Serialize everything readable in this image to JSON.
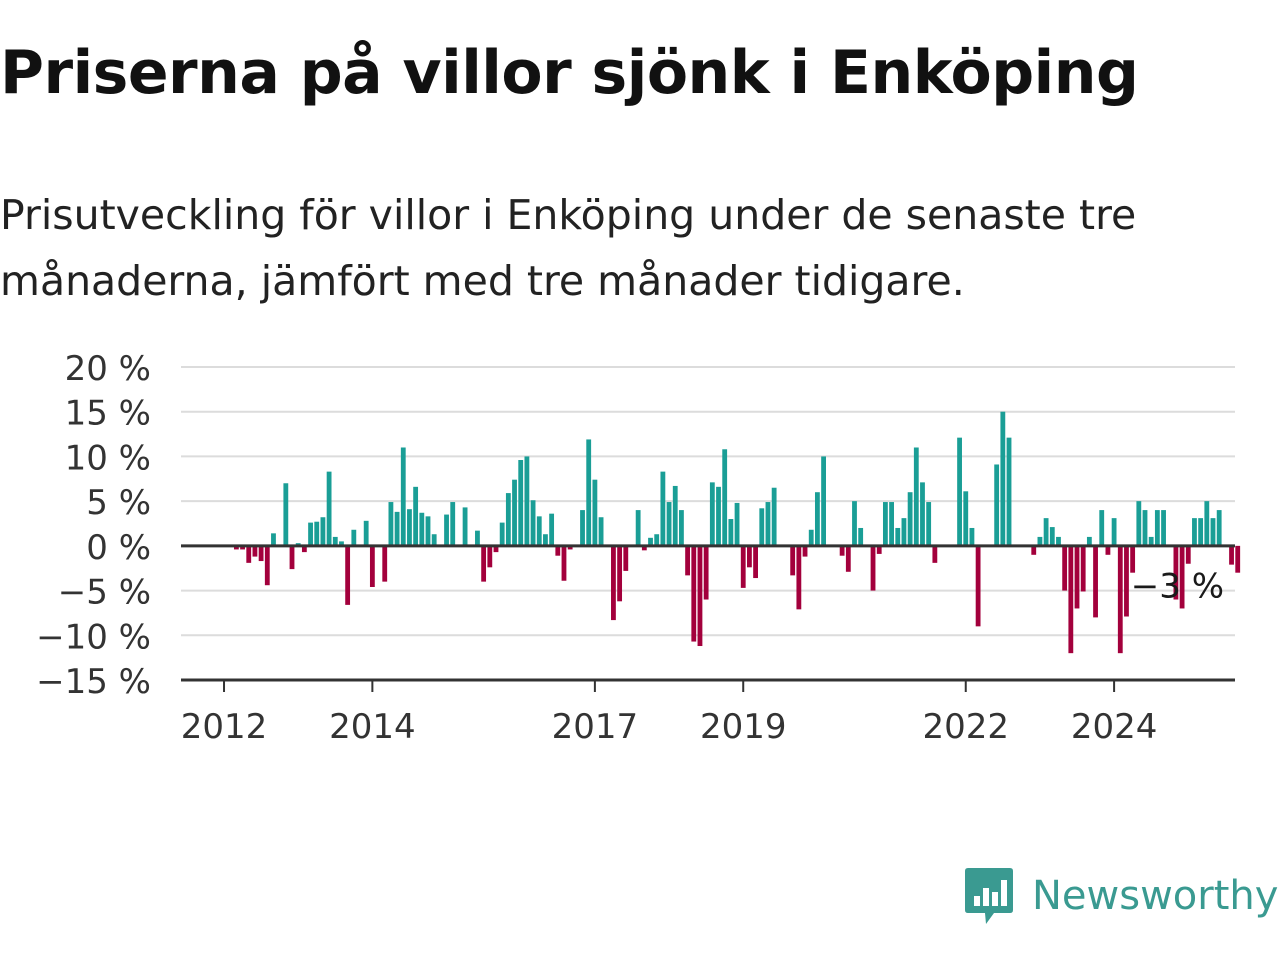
{
  "title": "Priserna på villor sjönk i Enköping",
  "subtitle": "Prisutveckling för villor i Enköping under de senaste tre månaderna, jämfört med tre månader tidigare.",
  "brand": {
    "name": "Newsworthy",
    "icon": "bar-chart-speech-bubble-icon",
    "color": "#3a9a91"
  },
  "chart_data": {
    "type": "bar",
    "title": "",
    "xlabel": "",
    "ylabel": "",
    "ylim": [
      -15,
      20
    ],
    "y_ticks": [
      20,
      15,
      10,
      5,
      0,
      -5,
      -10,
      -15
    ],
    "y_tick_labels": [
      "20 %",
      "15 %",
      "10 %",
      "5 %",
      "0 %",
      "−5 %",
      "−10 %",
      "−15 %"
    ],
    "x_tick_labels": [
      "2012",
      "2014",
      "2017",
      "2019",
      "2022",
      "2024"
    ],
    "x_tick_years": [
      2012,
      2014,
      2017,
      2019,
      2022,
      2024
    ],
    "x_range_years": [
      2011.42,
      2025.63
    ],
    "first_bar_year": 2012.0,
    "bar_step_years": 0.0833333,
    "grid": true,
    "colors": {
      "positive": "#1a9e96",
      "negative": "#a3003c",
      "grid": "#dcdcdc",
      "axis": "#333333"
    },
    "annotation": {
      "label": "−3 %",
      "value": -3
    },
    "values": [
      0,
      0,
      -0.4,
      -0.4,
      -1.9,
      -1.2,
      -1.7,
      -4.4,
      1.4,
      0,
      7.0,
      -2.6,
      0.3,
      -0.7,
      2.6,
      2.7,
      3.2,
      8.3,
      1.0,
      0.5,
      -6.6,
      1.8,
      0,
      2.8,
      -4.6,
      0,
      -4.0,
      4.9,
      3.8,
      11.0,
      4.1,
      6.6,
      3.7,
      3.3,
      1.3,
      0,
      3.5,
      4.9,
      0,
      4.3,
      0,
      1.7,
      -4.0,
      -2.4,
      -0.7,
      2.6,
      5.9,
      7.4,
      9.6,
      10.0,
      5.1,
      3.3,
      1.3,
      3.6,
      -1.1,
      -3.9,
      -0.4,
      0,
      4.0,
      11.9,
      7.4,
      3.2,
      0,
      -8.3,
      -6.2,
      -2.8,
      0,
      4.0,
      -0.5,
      0.9,
      1.3,
      8.3,
      4.9,
      6.7,
      4.0,
      -3.3,
      -10.7,
      -11.2,
      -6.0,
      7.1,
      6.6,
      10.8,
      3.0,
      4.8,
      -4.7,
      -2.4,
      -3.6,
      4.2,
      4.9,
      6.5,
      0,
      0,
      -3.3,
      -7.1,
      -1.2,
      1.8,
      6.0,
      10.0,
      0,
      0,
      -1.1,
      -2.9,
      5.0,
      2.0,
      0,
      -5.0,
      -0.9,
      4.9,
      4.9,
      2.0,
      3.1,
      6.0,
      11.0,
      7.1,
      4.9,
      -1.9,
      0,
      0,
      0,
      12.1,
      6.1,
      2.0,
      -9.0,
      0,
      0,
      9.1,
      15.0,
      12.1,
      0,
      0,
      0,
      -1.0,
      1.0,
      3.1,
      2.1,
      1.0,
      -5.0,
      -12.0,
      -7.0,
      -5.1,
      1.0,
      -8.0,
      4.0,
      -1.0,
      3.1,
      -12.0,
      -7.9,
      -3.0,
      5.0,
      4.0,
      1.0,
      4.0,
      4.0,
      0,
      -6.0,
      -7.0,
      -2.0,
      3.1,
      3.1,
      5.0,
      3.1,
      4.0,
      0,
      -2.1,
      -3.0
    ]
  }
}
